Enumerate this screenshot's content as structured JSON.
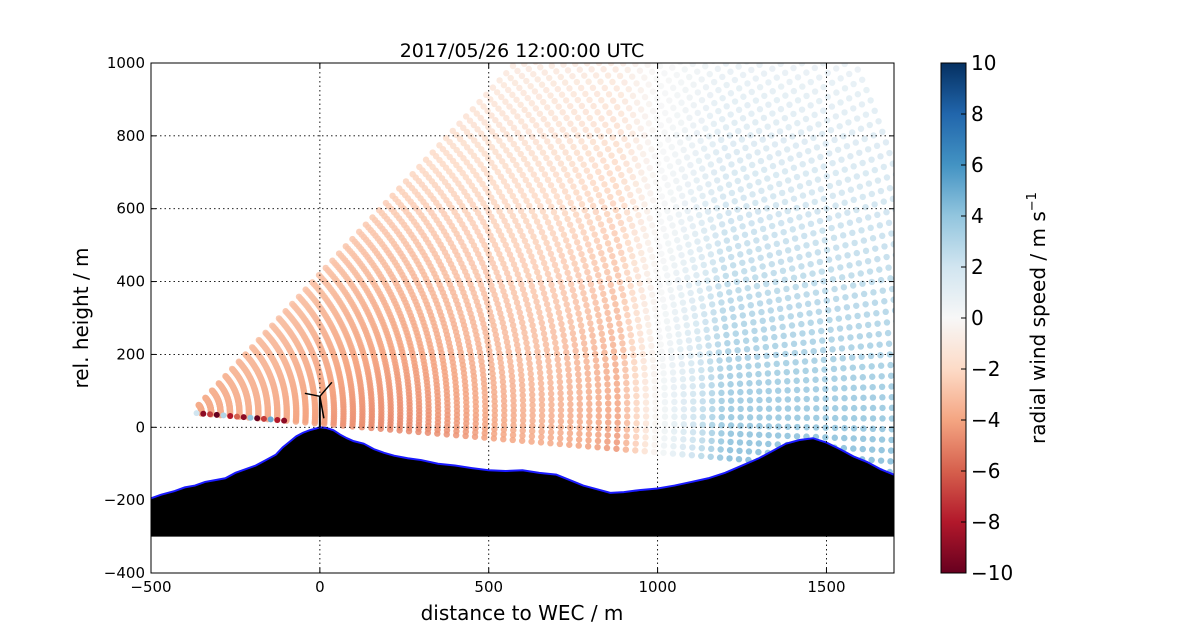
{
  "chart_data": {
    "type": "scatter",
    "title": "2017/05/26 12:00:00 UTC",
    "xlabel": "distance to WEC / m",
    "ylabel": "rel. height / m",
    "xlim": [
      -500,
      1700
    ],
    "ylim": [
      -400,
      1000
    ],
    "xticks": [
      "−500",
      "0",
      "500",
      "1000",
      "1500"
    ],
    "xtick_values": [
      -500,
      0,
      500,
      1000,
      1500
    ],
    "yticks": [
      "−400",
      "−200",
      "0",
      "200",
      "400",
      "600",
      "800",
      "1000"
    ],
    "ytick_values": [
      -400,
      -200,
      0,
      200,
      400,
      600,
      800,
      1000
    ],
    "grid": true,
    "colorbar": {
      "label": "radial wind speed / m s",
      "label_superscript": "−1",
      "range": [
        -10,
        10
      ],
      "ticks": [
        "−10",
        "−8",
        "−6",
        "−4",
        "−2",
        "0",
        "2",
        "4",
        "6",
        "8",
        "10"
      ],
      "tick_values": [
        -10,
        -8,
        -6,
        -4,
        -2,
        0,
        2,
        4,
        6,
        8,
        10
      ],
      "colormap": "RdBu",
      "stops": [
        "#67001f",
        "#b2182b",
        "#d6604d",
        "#f4a582",
        "#fddbc7",
        "#f7f7f7",
        "#d1e5f0",
        "#92c5de",
        "#4393c3",
        "#2166ac",
        "#053061"
      ]
    },
    "scan": {
      "lidar_origin": [
        -380,
        40
      ],
      "min_elevation_deg": -4.5,
      "max_elevation_deg": 45,
      "max_range_m": 2200,
      "split_distance_m": 1000,
      "approach_speed_mps": -4,
      "departure_speed_mps": 4,
      "near_ground_sample_speeds_mps": [
        2,
        -9,
        -7,
        -10,
        3,
        -8,
        -6,
        -9,
        4,
        -10,
        -7,
        5,
        -8,
        -9
      ]
    },
    "terrain_profile": {
      "base_m": -300,
      "x": [
        -500,
        -470,
        -430,
        -400,
        -370,
        -340,
        -310,
        -280,
        -250,
        -220,
        -190,
        -160,
        -130,
        -110,
        -90,
        -70,
        -50,
        -30,
        -10,
        0,
        20,
        40,
        60,
        80,
        100,
        130,
        160,
        190,
        220,
        260,
        300,
        350,
        400,
        450,
        500,
        550,
        600,
        650,
        700,
        740,
        780,
        820,
        860,
        900,
        950,
        1000,
        1050,
        1100,
        1150,
        1200,
        1250,
        1300,
        1340,
        1380,
        1420,
        1460,
        1500,
        1540,
        1580,
        1620,
        1660,
        1700
      ],
      "y": [
        -195,
        -185,
        -175,
        -165,
        -160,
        -150,
        -145,
        -140,
        -125,
        -115,
        -105,
        -90,
        -75,
        -55,
        -40,
        -25,
        -15,
        -8,
        -3,
        0,
        -2,
        -8,
        -20,
        -30,
        -38,
        -45,
        -60,
        -70,
        -78,
        -85,
        -90,
        -100,
        -105,
        -112,
        -118,
        -120,
        -118,
        -125,
        -130,
        -145,
        -160,
        -170,
        -180,
        -178,
        -172,
        -168,
        -160,
        -150,
        -140,
        -125,
        -105,
        -85,
        -65,
        -45,
        -35,
        -30,
        -42,
        -60,
        -80,
        -95,
        -115,
        -130
      ]
    },
    "wind_turbine": {
      "x": 0,
      "hub_height_m": 85,
      "rotor_radius_m": 45
    }
  }
}
